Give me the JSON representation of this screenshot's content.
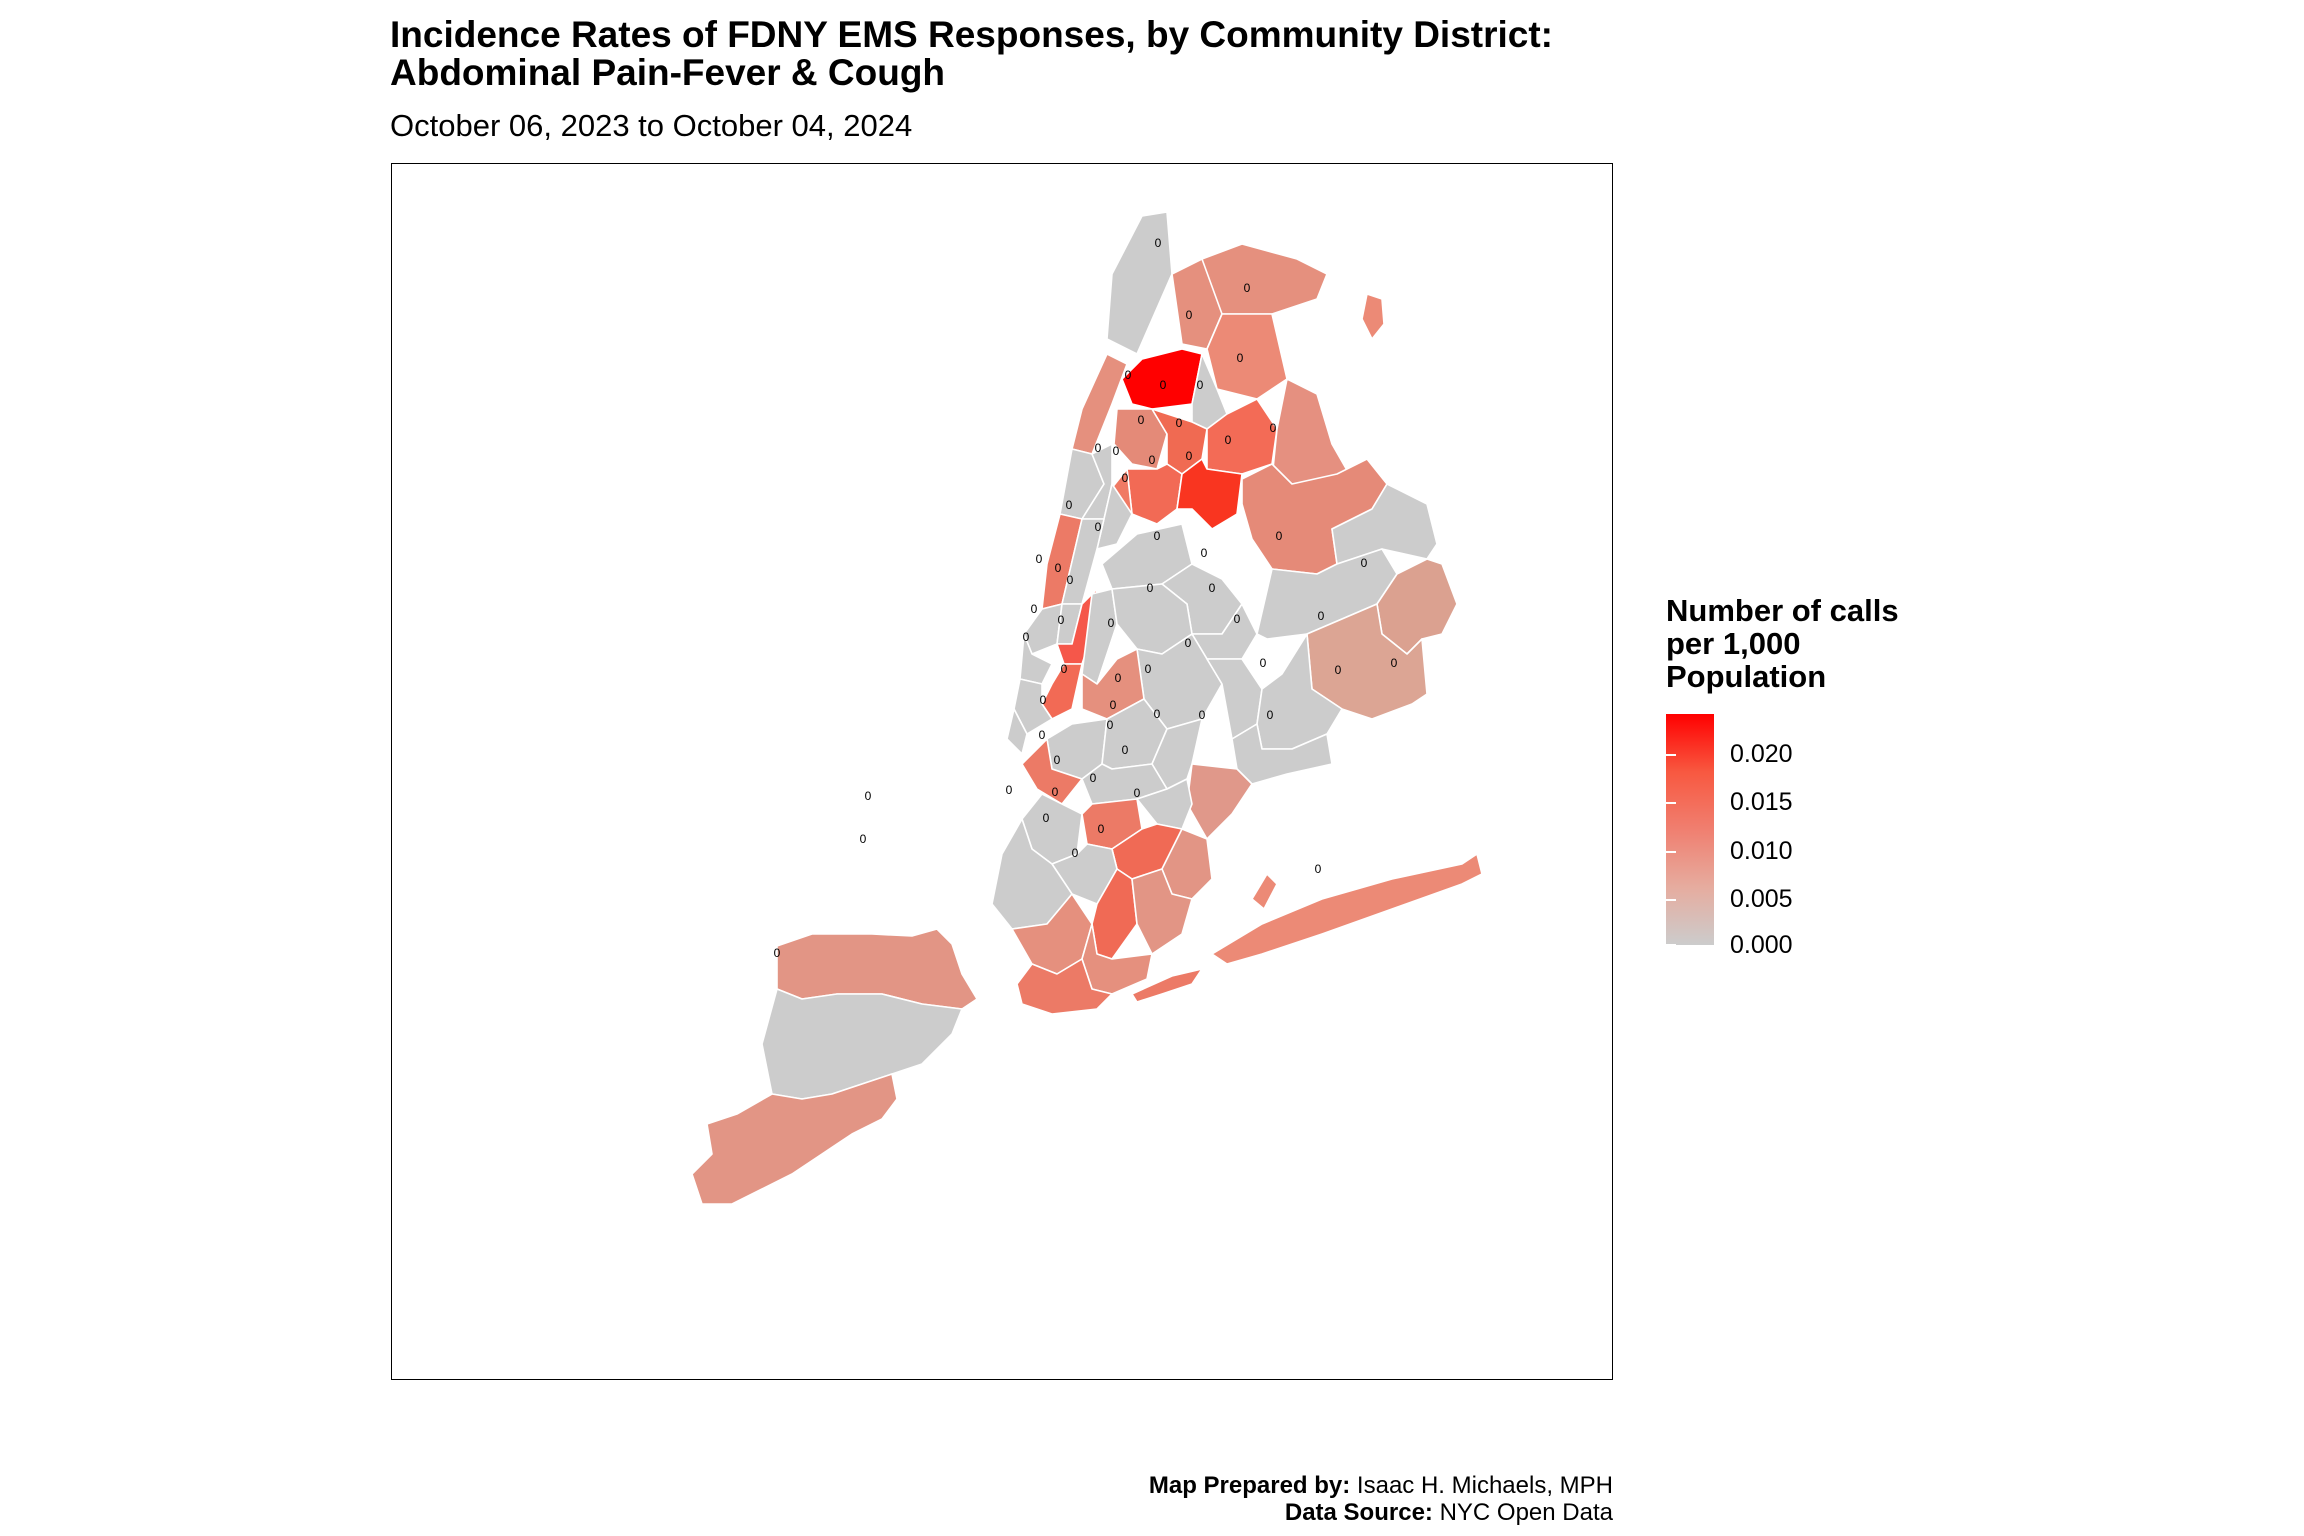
{
  "header": {
    "title_line1": "Incidence Rates of FDNY EMS Responses, by Community District:",
    "title_line2": "Abdominal Pain-Fever & Cough",
    "subtitle": "October 06, 2023 to October 04, 2024"
  },
  "legend": {
    "title_line1": "Number of calls",
    "title_line2": "per 1,000",
    "title_line3": "Population",
    "ticks": [
      "0.020",
      "0.015",
      "0.010",
      "0.005",
      "0.000"
    ],
    "scale_min": 0.0,
    "scale_max": 0.0225,
    "color_low": "#cccccc",
    "color_high": "#ff0000"
  },
  "map": {
    "district_label_value": "0"
  },
  "credits": {
    "prepared_label": "Map Prepared by:",
    "prepared_value": "Isaac H. Michaels, MPH",
    "source_label": "Data Source:",
    "source_value": "NYC Open Data"
  }
}
